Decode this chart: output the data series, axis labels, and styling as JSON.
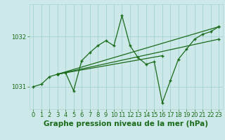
{
  "background_color": "#cce8e8",
  "grid_color": "#aad4d4",
  "line_color": "#1a6b1a",
  "title": "Graphe pression niveau de la mer (hPa)",
  "xlim": [
    -0.5,
    23.5
  ],
  "ylim": [
    1030.55,
    1032.65
  ],
  "yticks": [
    1031,
    1032
  ],
  "xticks": [
    0,
    1,
    2,
    3,
    4,
    5,
    6,
    7,
    8,
    9,
    10,
    11,
    12,
    13,
    14,
    15,
    16,
    17,
    18,
    19,
    20,
    21,
    22,
    23
  ],
  "main_x": [
    0,
    1,
    2,
    3,
    4,
    5,
    6,
    7,
    8,
    9,
    10,
    11,
    12,
    13,
    14,
    15,
    16,
    17,
    18,
    19,
    20,
    21,
    22,
    23
  ],
  "main_y": [
    1031.0,
    1031.05,
    1031.2,
    1031.25,
    1031.28,
    1030.92,
    1031.52,
    1031.68,
    1031.82,
    1031.92,
    1031.82,
    1032.42,
    1031.82,
    1031.58,
    1031.45,
    1031.5,
    1030.68,
    1031.12,
    1031.55,
    1031.75,
    1031.95,
    1032.05,
    1032.1,
    1032.2
  ],
  "trend1_x": [
    3,
    23
  ],
  "trend1_y": [
    1031.25,
    1032.2
  ],
  "trend2_x": [
    3,
    23
  ],
  "trend2_y": [
    1031.25,
    1031.95
  ],
  "trend3_x": [
    3,
    16
  ],
  "trend3_y": [
    1031.25,
    1031.62
  ],
  "title_fontsize": 7.5,
  "tick_fontsize": 6
}
